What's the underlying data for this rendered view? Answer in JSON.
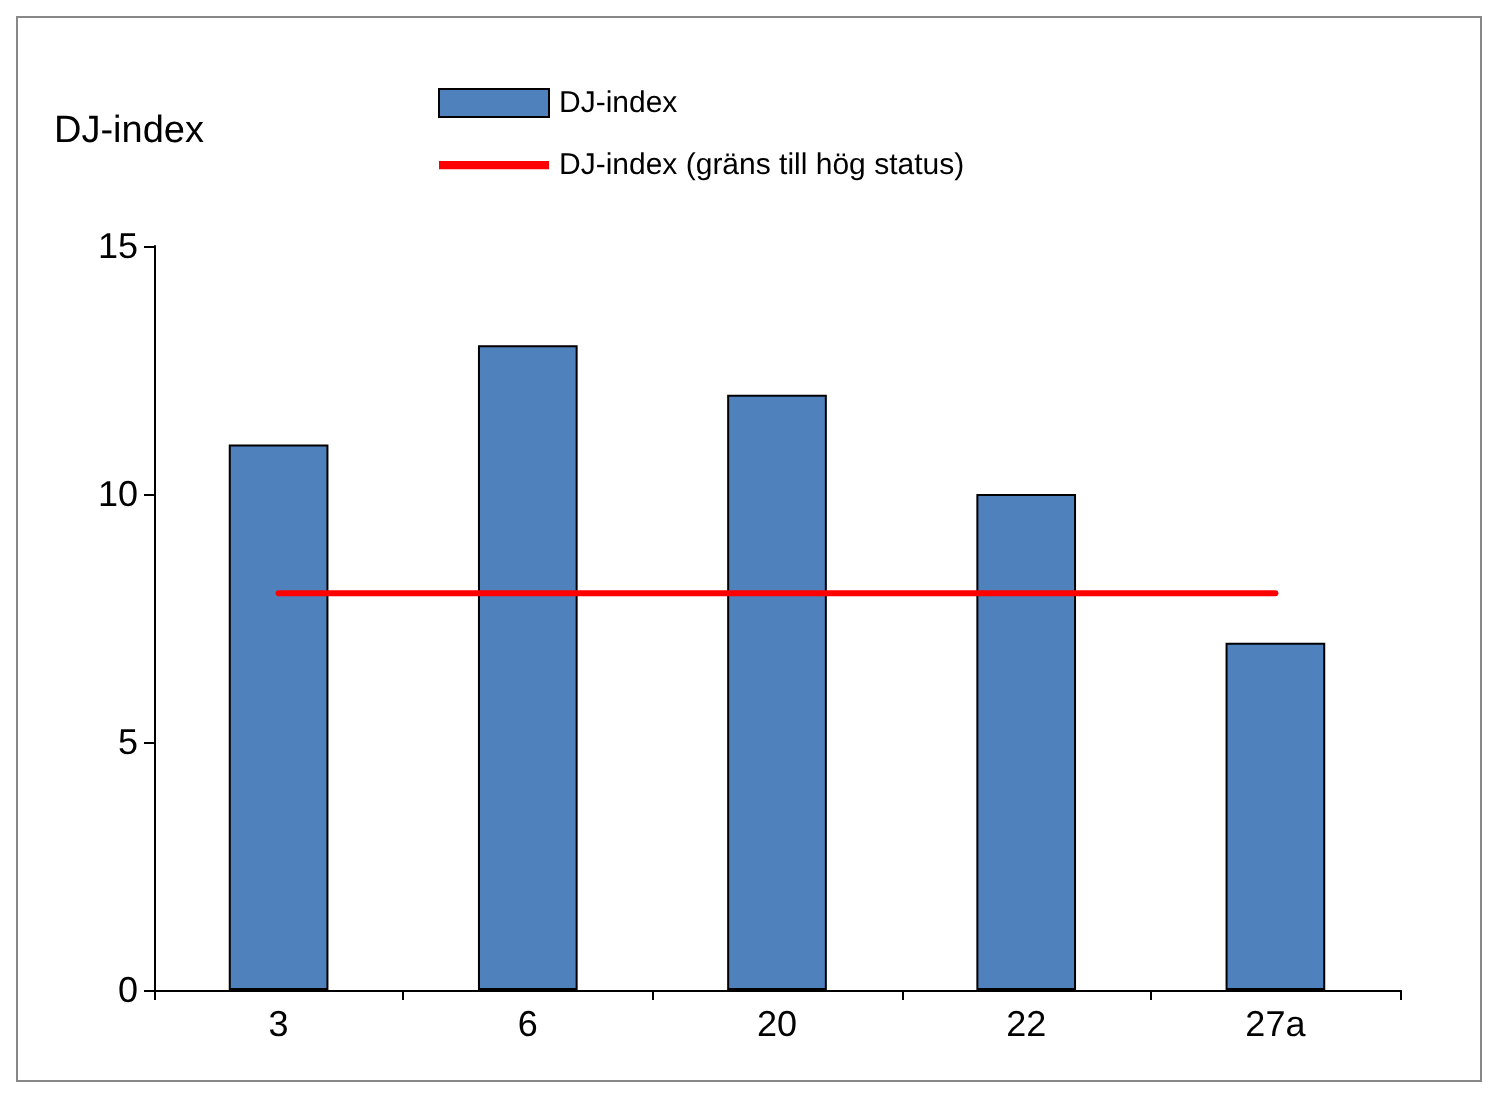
{
  "chart_data": {
    "type": "bar",
    "ylabel": "DJ-index",
    "categories": [
      "3",
      "6",
      "20",
      "22",
      "27a"
    ],
    "series": [
      {
        "name": "DJ-index",
        "color": "#4f81bd",
        "values": [
          11,
          13,
          12,
          10,
          7
        ]
      },
      {
        "name": "DJ-index (gräns till hög status)",
        "type": "line",
        "color": "#ff0000",
        "values": [
          8,
          8,
          8,
          8,
          8
        ]
      }
    ],
    "ylim": [
      0,
      15
    ],
    "yticks": [
      0,
      5,
      10,
      15
    ],
    "grid": false,
    "legend": "top",
    "marker": "none"
  }
}
